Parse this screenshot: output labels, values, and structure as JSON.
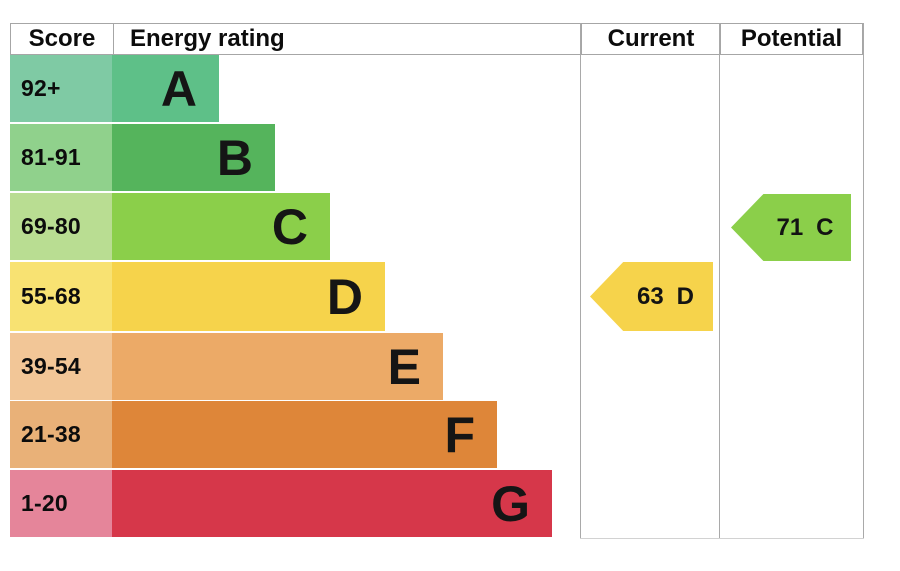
{
  "header": {
    "score": "Score",
    "energy_rating": "Energy rating",
    "current": "Current",
    "potential": "Potential"
  },
  "chart_data": {
    "type": "bar",
    "chart_kind": "epc-energy-rating",
    "columns": [
      "Score",
      "Energy rating",
      "Current",
      "Potential"
    ],
    "bands": [
      {
        "score": "92+",
        "letter": "A",
        "bar_color": "#5ec088",
        "score_color": "#7fcaa4"
      },
      {
        "score": "81-91",
        "letter": "B",
        "bar_color": "#55b45c",
        "score_color": "#90d18c"
      },
      {
        "score": "69-80",
        "letter": "C",
        "bar_color": "#8bcf4a",
        "score_color": "#b9dd92"
      },
      {
        "score": "55-68",
        "letter": "D",
        "bar_color": "#f6d34b",
        "score_color": "#f8e272"
      },
      {
        "score": "39-54",
        "letter": "E",
        "bar_color": "#ecaa67",
        "score_color": "#f2c697"
      },
      {
        "score": "21-38",
        "letter": "F",
        "bar_color": "#de8639",
        "score_color": "#e9b178"
      },
      {
        "score": "1-20",
        "letter": "G",
        "bar_color": "#d6374a",
        "score_color": "#e5859a"
      }
    ],
    "current": {
      "value": "63",
      "letter": "D",
      "band": "D",
      "color": "#f6d34b"
    },
    "potential": {
      "value": "71",
      "letter": "C",
      "band": "C",
      "color": "#8bcf4a"
    },
    "border_color": "#a9a9a9",
    "legend_position": "none",
    "grid": "off"
  }
}
